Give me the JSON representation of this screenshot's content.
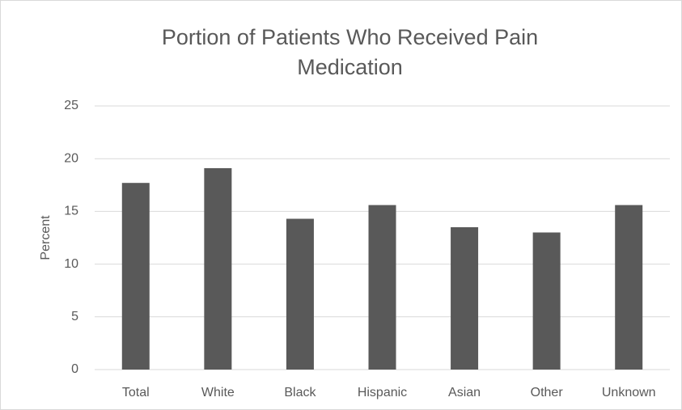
{
  "chart_data": {
    "type": "bar",
    "title": "Portion of Patients Who Received Pain Medication",
    "y_label": "Percent",
    "categories": [
      "Total",
      "White",
      "Black",
      "Hispanic",
      "Asian",
      "Other",
      "Unknown"
    ],
    "values": [
      17.7,
      19.1,
      14.3,
      15.6,
      13.5,
      13.0,
      15.6
    ],
    "color": "#595959",
    "ylim": [
      0,
      25
    ],
    "yticks": [
      0,
      5,
      10,
      15,
      20,
      25
    ],
    "grid": true
  }
}
